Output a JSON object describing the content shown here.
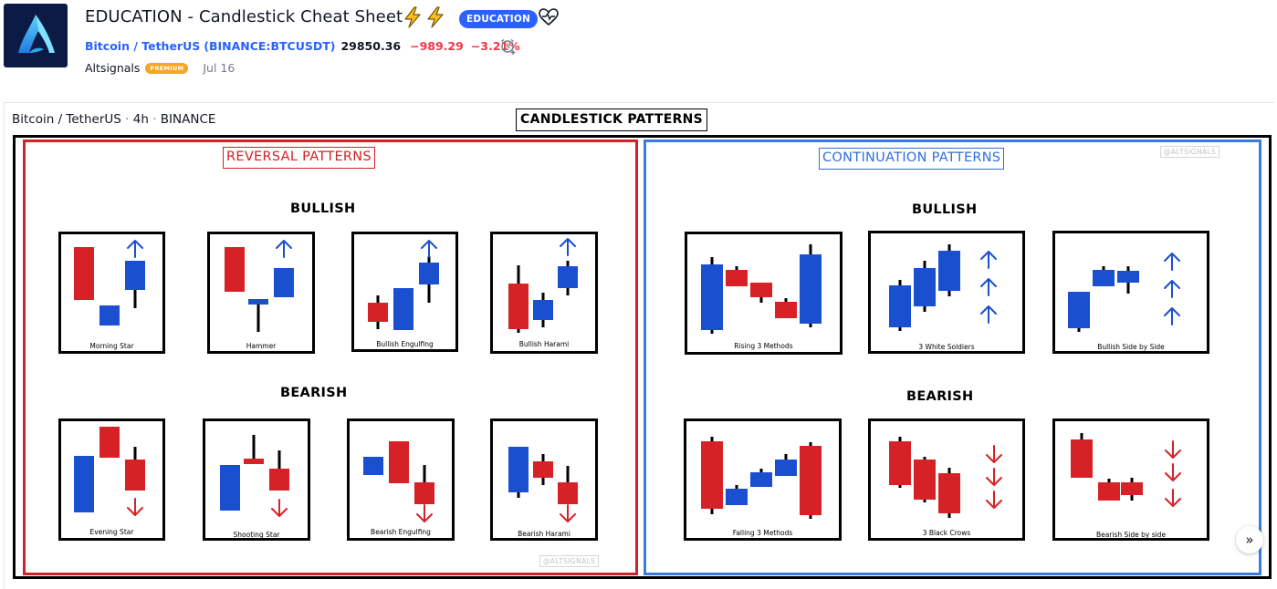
{
  "idea": {
    "title": "EDUCATION - Candlestick Cheat Sheet",
    "badge": "EDUCATION",
    "symbol_name": "Bitcoin / TetherUS",
    "symbol_exchange": "(BINANCE:BTCUSDT)",
    "price": "29850.36",
    "change": "−989.29",
    "change_pct": "−3.21%",
    "author": "Altsignals",
    "author_badge": "PREMIUM",
    "date": "Jul 16"
  },
  "chart": {
    "symbol": "Bitcoin / TetherUS",
    "timeframe": "4h",
    "exchange": "BINANCE",
    "title": "CANDLESTICK PATTERNS",
    "watermark": "@ALTSIGNALS",
    "reversal": {
      "title": "REVERSAL PATTERNS",
      "bullish_heading": "BULLISH",
      "bearish_heading": "BEARISH",
      "bullish": [
        "Morning Star",
        "Hammer",
        "Bullish Engulfing",
        "Bullish Harami"
      ],
      "bearish": [
        "Evening Star",
        "Shooting Star",
        "Bearish Engulfing",
        "Bearish Harami"
      ]
    },
    "continuation": {
      "title": "CONTINUATION PATTERNS",
      "bullish_heading": "BULLISH",
      "bearish_heading": "BEARISH",
      "bullish": [
        "Rising 3 Methods",
        "3 White Soldiers",
        "Bullish Side by Side"
      ],
      "bearish": [
        "Falling 3 Methods",
        "3 Black Crows",
        "Bearish Side by side"
      ]
    }
  },
  "colors": {
    "bull": "#1a4fd0",
    "bear": "#d62226",
    "reversal_border": "#d32125",
    "continuation_border": "#3a7be3",
    "link": "#2962ff",
    "negative": "#f23645"
  },
  "icons": [
    "lightning-icon",
    "heart-pulse-icon",
    "alarm-add-icon",
    "arrow-up-icon",
    "arrow-down-icon",
    "chevron-right-icon"
  ]
}
